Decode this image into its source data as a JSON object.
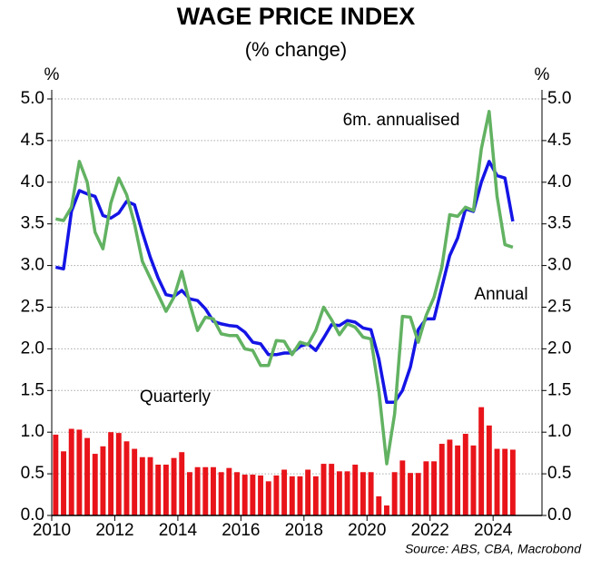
{
  "chart_data": {
    "type": "combo",
    "title": "WAGE PRICE INDEX",
    "subtitle": "(% change)",
    "y_label": "%",
    "y2_label": "%",
    "source": "Source: ABS, CBA, Macrobond",
    "xlim": [
      2010,
      2025.55
    ],
    "xticks": [
      2010,
      2012,
      2014,
      2016,
      2018,
      2020,
      2022,
      2024
    ],
    "ylim": [
      0,
      5
    ],
    "yticks": [
      {
        "value": 0,
        "label": "0.0"
      },
      {
        "value": 0.5,
        "label": "0.5"
      },
      {
        "value": 1,
        "label": "1.0"
      },
      {
        "value": 1.5,
        "label": "1.5"
      },
      {
        "value": 2,
        "label": "2.0"
      },
      {
        "value": 2.5,
        "label": "2.5"
      },
      {
        "value": 3,
        "label": "3.0"
      },
      {
        "value": 3.5,
        "label": "3.5"
      },
      {
        "value": 4,
        "label": "4.0"
      },
      {
        "value": 4.5,
        "label": "4.5"
      },
      {
        "value": 5,
        "label": "5.0"
      }
    ],
    "y2lim": [
      0,
      5
    ],
    "y2ticks": [
      {
        "value": 0,
        "label": "0.0"
      },
      {
        "value": 0.5,
        "label": "0.5"
      },
      {
        "value": 1,
        "label": "1.0"
      },
      {
        "value": 1.5,
        "label": "1.5"
      },
      {
        "value": 2,
        "label": "2.0"
      },
      {
        "value": 2.5,
        "label": "2.5"
      },
      {
        "value": 3,
        "label": "3.0"
      },
      {
        "value": 3.5,
        "label": "3.5"
      },
      {
        "value": 4,
        "label": "4.0"
      },
      {
        "value": 4.5,
        "label": "4.5"
      },
      {
        "value": 5,
        "label": "5.0"
      }
    ],
    "grid": true,
    "x": [
      2010.125,
      2010.375,
      2010.625,
      2010.875,
      2011.125,
      2011.375,
      2011.625,
      2011.875,
      2012.125,
      2012.375,
      2012.625,
      2012.875,
      2013.125,
      2013.375,
      2013.625,
      2013.875,
      2014.125,
      2014.375,
      2014.625,
      2014.875,
      2015.125,
      2015.375,
      2015.625,
      2015.875,
      2016.125,
      2016.375,
      2016.625,
      2016.875,
      2017.125,
      2017.375,
      2017.625,
      2017.875,
      2018.125,
      2018.375,
      2018.625,
      2018.875,
      2019.125,
      2019.375,
      2019.625,
      2019.875,
      2020.125,
      2020.375,
      2020.625,
      2020.875,
      2021.125,
      2021.375,
      2021.625,
      2021.875,
      2022.125,
      2022.375,
      2022.625,
      2022.875,
      2023.125,
      2023.375,
      2023.625,
      2023.875,
      2024.125,
      2024.375,
      2024.625
    ],
    "series": [
      {
        "name": "Quarterly",
        "type": "bar",
        "color": "#e8141a",
        "values": [
          0.97,
          0.77,
          1.04,
          1.03,
          0.93,
          0.74,
          0.83,
          1.0,
          0.99,
          0.89,
          0.8,
          0.7,
          0.7,
          0.61,
          0.61,
          0.69,
          0.76,
          0.52,
          0.58,
          0.58,
          0.58,
          0.52,
          0.57,
          0.52,
          0.49,
          0.49,
          0.48,
          0.41,
          0.48,
          0.55,
          0.47,
          0.47,
          0.55,
          0.47,
          0.62,
          0.62,
          0.53,
          0.53,
          0.61,
          0.52,
          0.52,
          0.23,
          0.12,
          0.52,
          0.66,
          0.51,
          0.51,
          0.65,
          0.65,
          0.86,
          0.91,
          0.84,
          0.98,
          0.84,
          1.3,
          1.08,
          0.8,
          0.8,
          0.79
        ]
      },
      {
        "name": "Annual",
        "type": "line",
        "color": "#1414e6",
        "values": [
          2.98,
          2.96,
          3.65,
          3.9,
          3.86,
          3.83,
          3.6,
          3.57,
          3.63,
          3.77,
          3.73,
          3.4,
          3.1,
          2.85,
          2.65,
          2.63,
          2.7,
          2.6,
          2.58,
          2.48,
          2.33,
          2.3,
          2.28,
          2.27,
          2.2,
          2.08,
          2.06,
          1.93,
          1.93,
          1.95,
          1.95,
          2.03,
          2.06,
          1.98,
          2.13,
          2.29,
          2.28,
          2.34,
          2.32,
          2.25,
          2.23,
          1.88,
          1.36,
          1.36,
          1.5,
          1.78,
          2.23,
          2.36,
          2.36,
          2.74,
          3.12,
          3.33,
          3.68,
          3.65,
          4.0,
          4.25,
          4.08,
          4.05,
          3.53
        ]
      },
      {
        "name": "6m. annualised",
        "type": "line",
        "color": "#62b262",
        "values": [
          3.56,
          3.54,
          3.7,
          4.25,
          4.0,
          3.4,
          3.2,
          3.75,
          4.05,
          3.85,
          3.5,
          3.05,
          2.85,
          2.65,
          2.45,
          2.62,
          2.93,
          2.55,
          2.22,
          2.38,
          2.36,
          2.18,
          2.16,
          2.16,
          2.0,
          1.98,
          1.8,
          1.8,
          2.1,
          2.09,
          1.93,
          2.08,
          2.05,
          2.22,
          2.5,
          2.35,
          2.17,
          2.3,
          2.26,
          2.14,
          2.12,
          1.5,
          0.62,
          1.22,
          2.39,
          2.38,
          2.08,
          2.4,
          2.62,
          2.98,
          3.61,
          3.59,
          3.7,
          3.66,
          4.4,
          4.85,
          3.83,
          3.25,
          3.22
        ]
      }
    ]
  }
}
